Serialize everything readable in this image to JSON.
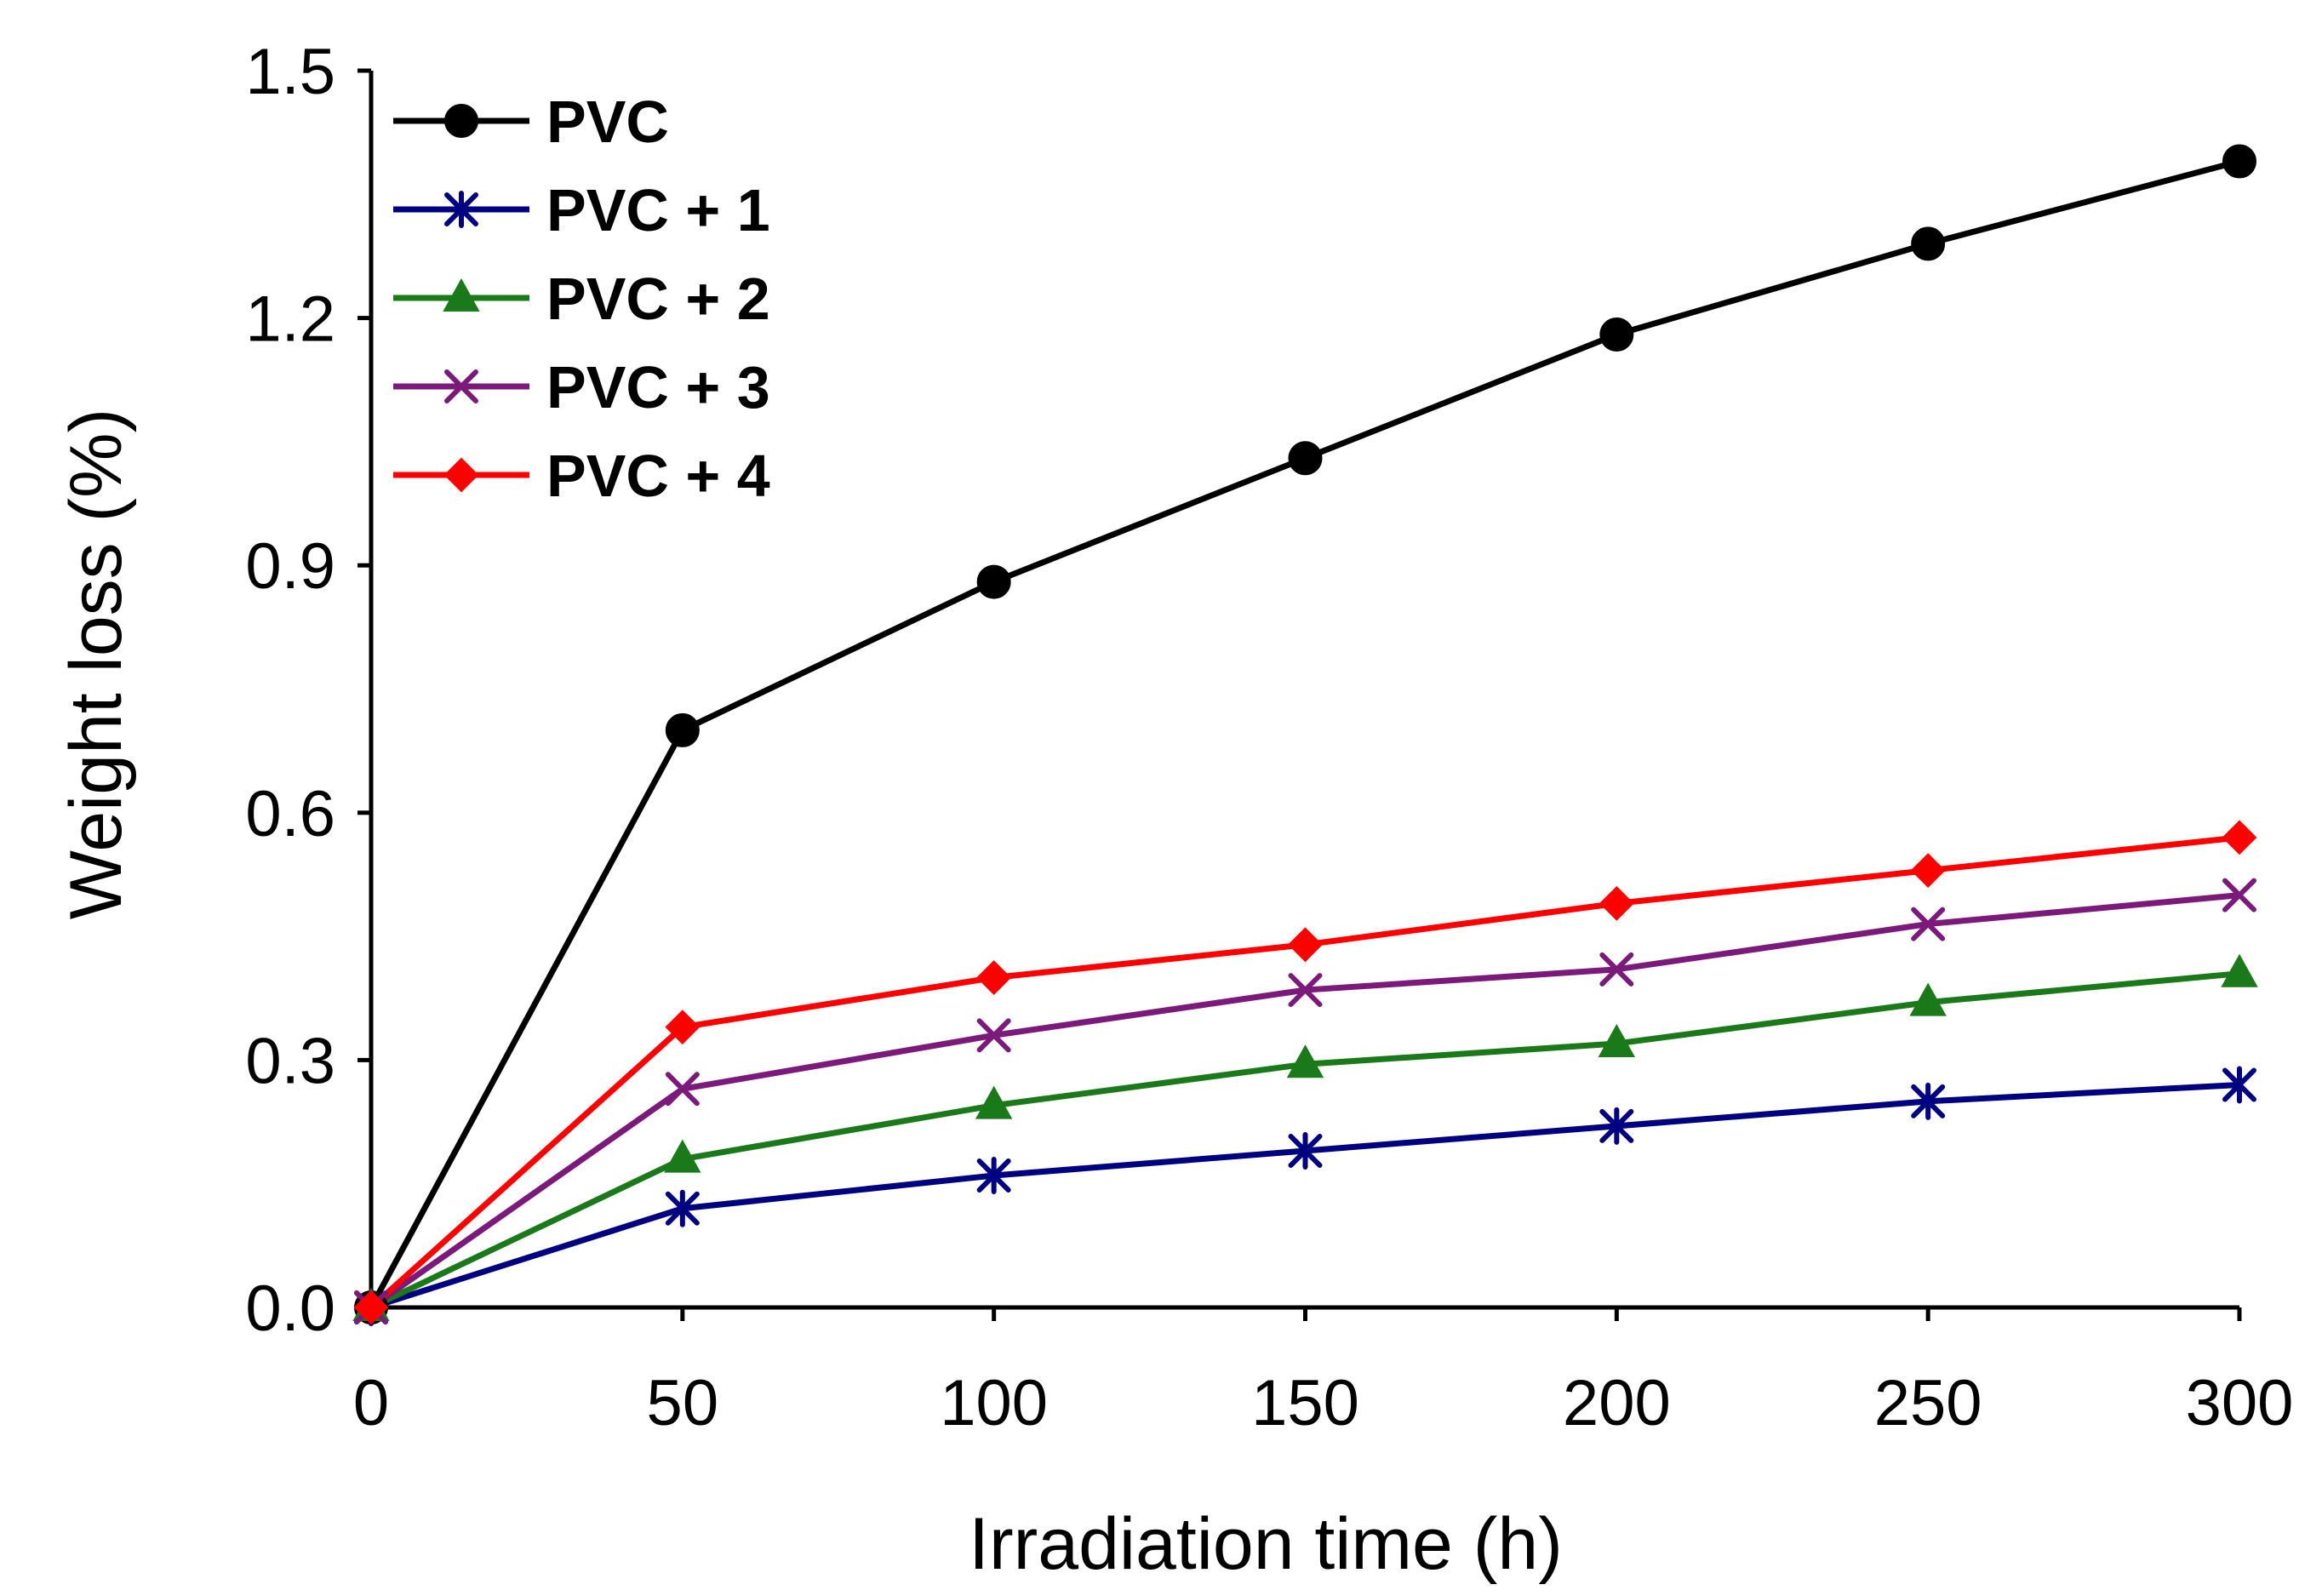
{
  "chart_data": {
    "type": "line",
    "title": "",
    "xlabel": "Irradiation time (h)",
    "ylabel": "Weight loss (%)",
    "xlim": [
      0,
      300
    ],
    "ylim": [
      0,
      1.5
    ],
    "grid": false,
    "legend_position": "top-left",
    "x_ticks": [
      "0",
      "50",
      "100",
      "150",
      "200",
      "250",
      "300"
    ],
    "y_ticks": [
      "0.0",
      "0.3",
      "0.6",
      "0.9",
      "1.2",
      "1.5"
    ],
    "x": [
      0,
      50,
      100,
      150,
      200,
      250,
      300
    ],
    "series": [
      {
        "name": "PVC",
        "key": "pvc",
        "color": "#000000",
        "marker": "circle",
        "values": [
          0.0,
          0.7,
          0.88,
          1.03,
          1.18,
          1.29,
          1.39
        ]
      },
      {
        "name": "PVC + 1",
        "key": "pvc-1",
        "color": "#000080",
        "marker": "asterisk",
        "values": [
          0.0,
          0.12,
          0.16,
          0.19,
          0.22,
          0.25,
          0.27
        ]
      },
      {
        "name": "PVC + 2",
        "key": "pvc-2",
        "color": "#1A7A1A",
        "marker": "triangle",
        "values": [
          0.0,
          0.18,
          0.245,
          0.295,
          0.32,
          0.37,
          0.405
        ]
      },
      {
        "name": "PVC + 3",
        "key": "pvc-3",
        "color": "#7B1A7B",
        "marker": "x",
        "values": [
          0.0,
          0.265,
          0.33,
          0.385,
          0.41,
          0.465,
          0.5
        ]
      },
      {
        "name": "PVC + 4",
        "key": "pvc-4",
        "color": "#FF0000",
        "marker": "diamond",
        "values": [
          0.0,
          0.34,
          0.4,
          0.44,
          0.49,
          0.53,
          0.57
        ]
      }
    ]
  }
}
